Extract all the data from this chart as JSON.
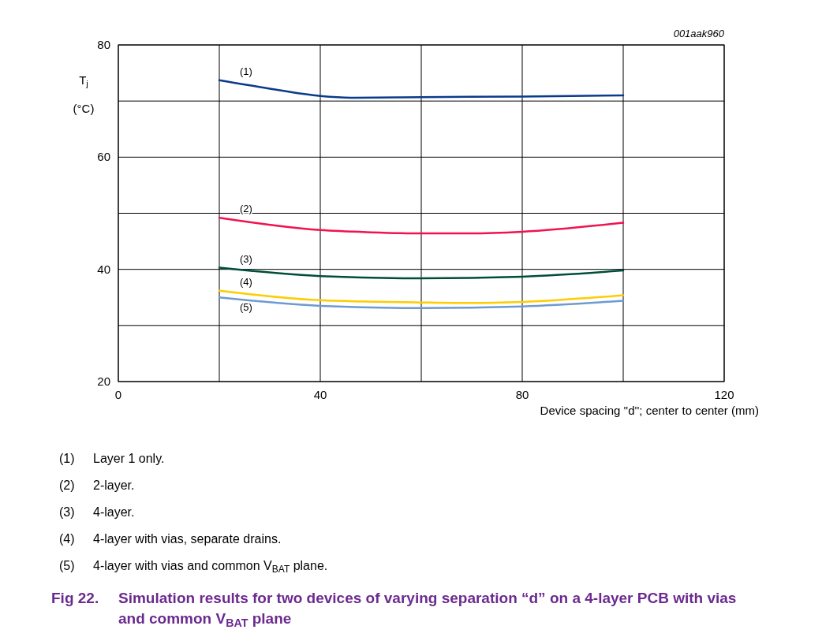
{
  "chart_data": {
    "type": "line",
    "title": "Fig 22.  Simulation results for two devices of varying separation “d” on a 4-layer PCB with vias and common V$_{BAT}$ plane",
    "xlabel": "Device spacing ''d''; center to center (mm)",
    "ylabel": "T$_{j}$ (°C)",
    "annotations": [
      "001aak960",
      "(1) Layer 1 only.",
      "(2) 2-layer.",
      "(3) 4-layer.",
      "(4) 4-layer with vias, separate drains.",
      "(5) 4-layer with vias and common V$_{BAT}$ plane."
    ],
    "xlim": [
      0,
      120
    ],
    "xticks": [
      0,
      {
        "value": 20,
        "label": null
      },
      40,
      {
        "value": 60,
        "label": null
      },
      80,
      {
        "value": 100,
        "label": null
      },
      120
    ],
    "ylim": [
      20,
      80
    ],
    "yticks": [
      20,
      {
        "value": 30,
        "label": null
      },
      40,
      {
        "value": 50,
        "label": null
      },
      60,
      {
        "value": 70,
        "label": null
      },
      80
    ],
    "grid": true,
    "marker": "none",
    "line_style": "solid",
    "series": [
      {
        "name": "(1)",
        "color": "#0a3a8c",
        "x": [
          20,
          30,
          40,
          46,
          60,
          80,
          100
        ],
        "values": [
          73.7,
          72.2,
          70.9,
          70.6,
          70.7,
          70.8,
          71.0
        ]
      },
      {
        "name": "(2)",
        "color": "#f0134d",
        "x": [
          20,
          40,
          50,
          60,
          70,
          80,
          100
        ],
        "values": [
          49.2,
          47.0,
          46.6,
          46.4,
          46.4,
          46.7,
          48.3
        ]
      },
      {
        "name": "(3)",
        "color": "#004d3a",
        "x": [
          20,
          40,
          60,
          80,
          100
        ],
        "values": [
          40.3,
          38.8,
          38.4,
          38.7,
          39.8
        ]
      },
      {
        "name": "(4)",
        "color": "#ffcc00",
        "x": [
          20,
          40,
          60,
          70,
          80,
          100
        ],
        "values": [
          36.2,
          34.5,
          34.1,
          34.0,
          34.2,
          35.4
        ]
      },
      {
        "name": "(5)",
        "color": "#6e9ad0",
        "x": [
          20,
          40,
          60,
          80,
          100
        ],
        "values": [
          35.0,
          33.5,
          33.1,
          33.4,
          34.4
        ]
      }
    ]
  }
}
